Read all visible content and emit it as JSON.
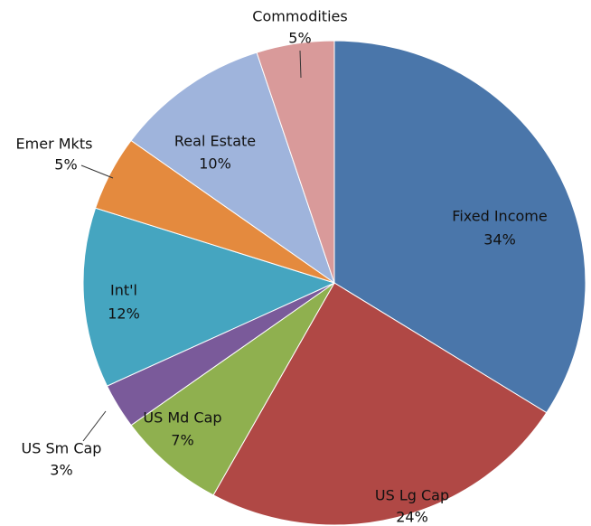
{
  "chart_data": {
    "type": "pie",
    "categories": [
      "Fixed Income",
      "US Lg Cap",
      "US Md Cap",
      "US Sm Cap",
      "Int'l",
      "Emer Mkts",
      "Real Estate",
      "Commodities"
    ],
    "values": [
      34,
      24,
      7,
      3,
      12,
      5,
      10,
      5
    ],
    "value_labels": [
      "34%",
      "24%",
      "7%",
      "3%",
      "12%",
      "5%",
      "10%",
      "5%"
    ],
    "colors": [
      "#4a76aa",
      "#b04845",
      "#8fb04f",
      "#7a5a9a",
      "#45a5c0",
      "#e48a3e",
      "#9fb4dc",
      "#d99a9a"
    ]
  }
}
